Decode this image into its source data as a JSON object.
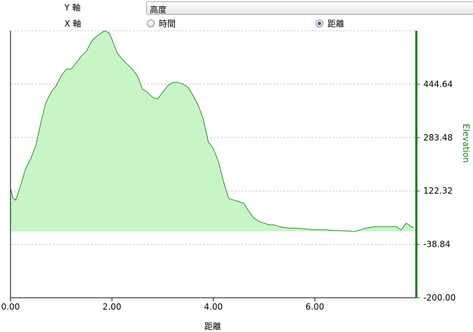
{
  "controls": {
    "y_axis_label": "Y 軸",
    "x_axis_label": "X 軸",
    "y_axis_select_value": "高度",
    "x_options": [
      {
        "label": "時間",
        "checked": false
      },
      {
        "label": "距離",
        "checked": true
      }
    ]
  },
  "colors": {
    "fill": "#c8f5c8",
    "line": "#2e8b2e",
    "right_axis": "#0a7a0a",
    "grid": "#cccccc"
  },
  "chart_data": {
    "type": "area",
    "xlabel": "距離",
    "ylabel": "Elevation",
    "xlim": [
      0,
      8
    ],
    "ylim": [
      -200,
      605.8
    ],
    "baseline": 0,
    "x_ticks": [
      "0.00",
      "2.00",
      "4.00",
      "6.00"
    ],
    "y_ticks": [
      "444.64",
      "283.48",
      "122.32",
      "-38.84",
      "-200.00"
    ],
    "x_tick_values": [
      0,
      2,
      4,
      6
    ],
    "y_tick_values": [
      444.64,
      283.48,
      122.32,
      -38.84,
      -200.0
    ],
    "series": [
      {
        "x": [
          0.0,
          0.05,
          0.1,
          0.15,
          0.2,
          0.3,
          0.4,
          0.5,
          0.6,
          0.7,
          0.8,
          0.9,
          1.0,
          1.1,
          1.2,
          1.3,
          1.4,
          1.5,
          1.6,
          1.7,
          1.8,
          1.85,
          1.9,
          1.95,
          2.0,
          2.05,
          2.1,
          2.2,
          2.3,
          2.4,
          2.5,
          2.6,
          2.7,
          2.8,
          2.9,
          3.0,
          3.1,
          3.2,
          3.3,
          3.4,
          3.5,
          3.6,
          3.7,
          3.8,
          3.9,
          4.0,
          4.1,
          4.2,
          4.3,
          4.4,
          4.5,
          4.6,
          4.7,
          4.8,
          4.9,
          5.0,
          5.1,
          5.2,
          5.3,
          5.4,
          5.5,
          5.6,
          5.8,
          6.0,
          6.2,
          6.4,
          6.6,
          6.8,
          6.9,
          7.0,
          7.2,
          7.4,
          7.6,
          7.7,
          7.8,
          7.9,
          7.95
        ],
        "y": [
          130,
          100,
          95,
          115,
          140,
          190,
          220,
          260,
          330,
          390,
          420,
          440,
          470,
          490,
          490,
          510,
          530,
          545,
          575,
          590,
          600,
          605,
          603,
          598,
          580,
          560,
          540,
          520,
          505,
          490,
          470,
          430,
          420,
          405,
          400,
          420,
          440,
          450,
          450,
          445,
          435,
          410,
          380,
          340,
          270,
          250,
          210,
          150,
          100,
          95,
          90,
          85,
          60,
          40,
          30,
          25,
          20,
          20,
          15,
          12,
          10,
          10,
          8,
          5,
          5,
          3,
          2,
          0,
          5,
          10,
          15,
          15,
          15,
          5,
          25,
          15,
          10
        ]
      }
    ]
  }
}
